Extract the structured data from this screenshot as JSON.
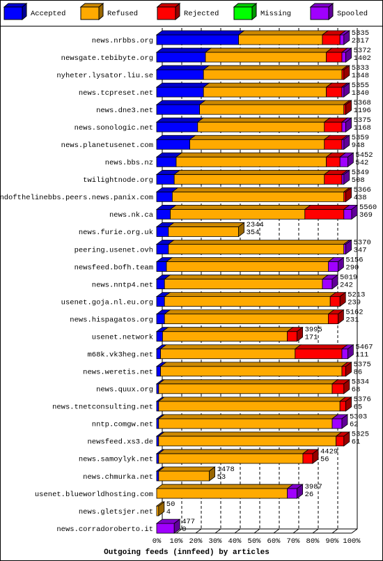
{
  "chart_data": {
    "type": "bar",
    "orientation": "horizontal",
    "stacked": true,
    "x_label": "Outgoing feeds (innfeed) by articles",
    "categories": [
      "news.nrbbs.org",
      "newsgate.tebibyte.org",
      "nyheter.lysator.liu.se",
      "news.tcpreset.net",
      "news.dne3.net",
      "news.sonologic.net",
      "news.planetusenet.com",
      "news.bbs.nz",
      "twilightnode.org",
      "endofthelinebbs.peers.news.panix.com",
      "news.nk.ca",
      "news.furie.org.uk",
      "peering.usenet.ovh",
      "newsfeed.bofh.team",
      "news.nntp4.net",
      "usenet.goja.nl.eu.org",
      "news.hispagatos.org",
      "usenet.network",
      "m68k.vk3heg.net",
      "news.weretis.net",
      "news.quux.org",
      "news.tnetconsulting.net",
      "nntp.comgw.net",
      "newsfeed.xs3.de",
      "news.samoylyk.net",
      "news.chmurka.net",
      "usenet.blueworldhosting.com",
      "news.gletsjer.net",
      "news.corradoroberto.it"
    ],
    "series": [
      {
        "name": "Accepted",
        "color": "#0000ff",
        "values": [
          42,
          25,
          24,
          24,
          22,
          21,
          17,
          10,
          9,
          8,
          7,
          6,
          6,
          5,
          4,
          4,
          4,
          3,
          2,
          2,
          1,
          1,
          1,
          1,
          1,
          1,
          0,
          0,
          0
        ]
      },
      {
        "name": "Refused",
        "color": "#ffaa00",
        "values": [
          43,
          62,
          71,
          63,
          74,
          65,
          69,
          77,
          77,
          88,
          69,
          36,
          90,
          83,
          81,
          85,
          84,
          64,
          69,
          93,
          89,
          93,
          89,
          91,
          74,
          26,
          67,
          1,
          0
        ]
      },
      {
        "name": "Rejected",
        "color": "#ff0000",
        "values": [
          9,
          8,
          1,
          8,
          1,
          9,
          9,
          7,
          9,
          1,
          20,
          0,
          0,
          0,
          0,
          5,
          5,
          5,
          24,
          2,
          6,
          3,
          0,
          4,
          5,
          0,
          0,
          0,
          0
        ]
      },
      {
        "name": "Missing",
        "color": "#00ff00",
        "values": [
          0,
          0,
          0,
          0,
          0,
          0,
          0,
          0,
          0,
          0,
          0,
          0,
          0,
          0,
          0,
          0,
          0,
          0,
          0,
          0,
          0,
          0,
          0,
          0,
          0,
          0,
          0,
          0,
          0
        ]
      },
      {
        "name": "Spooled",
        "color": "#a000ff",
        "values": [
          2,
          2,
          0,
          1,
          0,
          2,
          1,
          4,
          1,
          0,
          4,
          0,
          1,
          5,
          5,
          0,
          0,
          0,
          3,
          0,
          0,
          0,
          5,
          0,
          0,
          0,
          5,
          0,
          9
        ]
      }
    ],
    "offered": [
      5335,
      5372,
      5333,
      5355,
      5368,
      5375,
      5359,
      5452,
      5349,
      5366,
      5560,
      2344,
      5370,
      5156,
      5019,
      5213,
      5162,
      3995,
      5467,
      5375,
      5334,
      5376,
      5303,
      5325,
      4429,
      1478,
      3987,
      50,
      477
    ],
    "accepted": [
      2317,
      1402,
      1348,
      1340,
      1196,
      1168,
      948,
      542,
      508,
      438,
      369,
      354,
      347,
      290,
      242,
      239,
      231,
      171,
      111,
      86,
      68,
      65,
      62,
      61,
      56,
      53,
      26,
      4,
      0
    ],
    "xlim": [
      0,
      100
    ],
    "xticks": [
      {
        "value": 0,
        "label": "0%"
      },
      {
        "value": 10,
        "label": "10%"
      },
      {
        "value": 20,
        "label": "20%"
      },
      {
        "value": 30,
        "label": "30%"
      },
      {
        "value": 40,
        "label": "40%"
      },
      {
        "value": 50,
        "label": "50%"
      },
      {
        "value": 60,
        "label": "60%"
      },
      {
        "value": 70,
        "label": "70%"
      },
      {
        "value": 80,
        "label": "80%"
      },
      {
        "value": 90,
        "label": "90%"
      },
      {
        "value": 100,
        "label": "100%"
      }
    ],
    "grid": true
  }
}
